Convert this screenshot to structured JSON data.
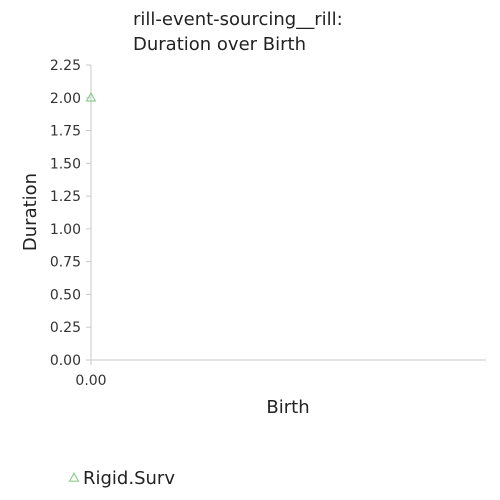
{
  "chart_data": {
    "type": "scatter",
    "title_lines": [
      "rill-event-sourcing__rill:",
      "Duration over Birth"
    ],
    "xlabel": "Birth",
    "ylabel": "Duration",
    "xlim": [
      0,
      1
    ],
    "ylim": [
      0,
      2.25
    ],
    "x_ticks": [
      0
    ],
    "x_tick_labels": [
      "0.00"
    ],
    "y_ticks": [
      0,
      0.25,
      0.5,
      0.75,
      1.0,
      1.25,
      1.5,
      1.75,
      2.0,
      2.25
    ],
    "y_tick_labels": [
      "0.00",
      "0.25",
      "0.50",
      "0.75",
      "1.00",
      "1.25",
      "1.50",
      "1.75",
      "2.00",
      "2.25"
    ],
    "grid": false,
    "legend_position": "bottom-left",
    "series": [
      {
        "name": "Rigid.Surv",
        "marker": "triangle-up",
        "color": "#8fce8f",
        "points": [
          {
            "x": 0,
            "y": 2.0
          }
        ]
      }
    ]
  }
}
